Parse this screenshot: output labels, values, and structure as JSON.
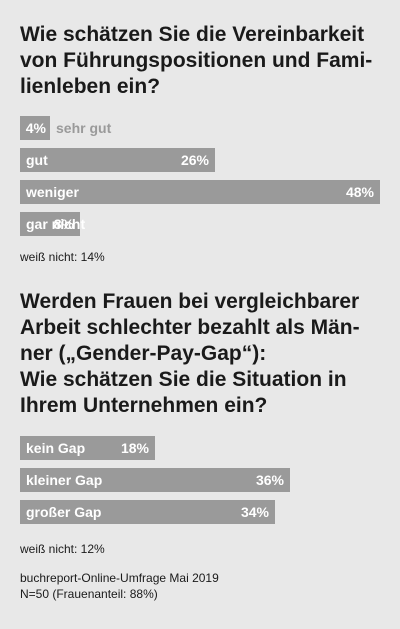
{
  "colors": {
    "background": "#e8e8e8",
    "bar": "#9a9a9a",
    "label_inside": "#ffffff",
    "label_outside": "#9a9a9a"
  },
  "q1": {
    "title_lines": [
      "Wie schätzen Sie die Vereinbarkeit",
      "von Führungspositionen und Fami-",
      "lienleben ein?"
    ],
    "note": "weiß nicht: 14%"
  },
  "q2": {
    "title_lines": [
      "Werden Frauen bei vergleichbarer",
      "Arbeit schlechter bezahlt als Män-",
      "ner („Gender-Pay-Gap“):",
      "Wie schätzen Sie die Situation in",
      "Ihrem Unternehmen ein?"
    ],
    "note": "weiß nicht: 12%"
  },
  "footer": {
    "source": "buchreport-Online-Umfrage Mai 2019",
    "sample": "N=50 (Frauenanteil: 88%)"
  },
  "chart_data": [
    {
      "type": "bar",
      "orientation": "horizontal",
      "categories": [
        "sehr gut",
        "gut",
        "weniger",
        "gar nicht"
      ],
      "values": [
        4,
        26,
        48,
        8
      ],
      "value_labels": [
        "4%",
        "26%",
        "48%",
        "8%"
      ],
      "unit": "%",
      "xlim": [
        0,
        48
      ]
    },
    {
      "type": "bar",
      "orientation": "horizontal",
      "categories": [
        "kein Gap",
        "kleiner Gap",
        "großer Gap"
      ],
      "values": [
        18,
        36,
        34
      ],
      "value_labels": [
        "18%",
        "36%",
        "34%"
      ],
      "unit": "%",
      "xlim": [
        0,
        48
      ]
    }
  ]
}
